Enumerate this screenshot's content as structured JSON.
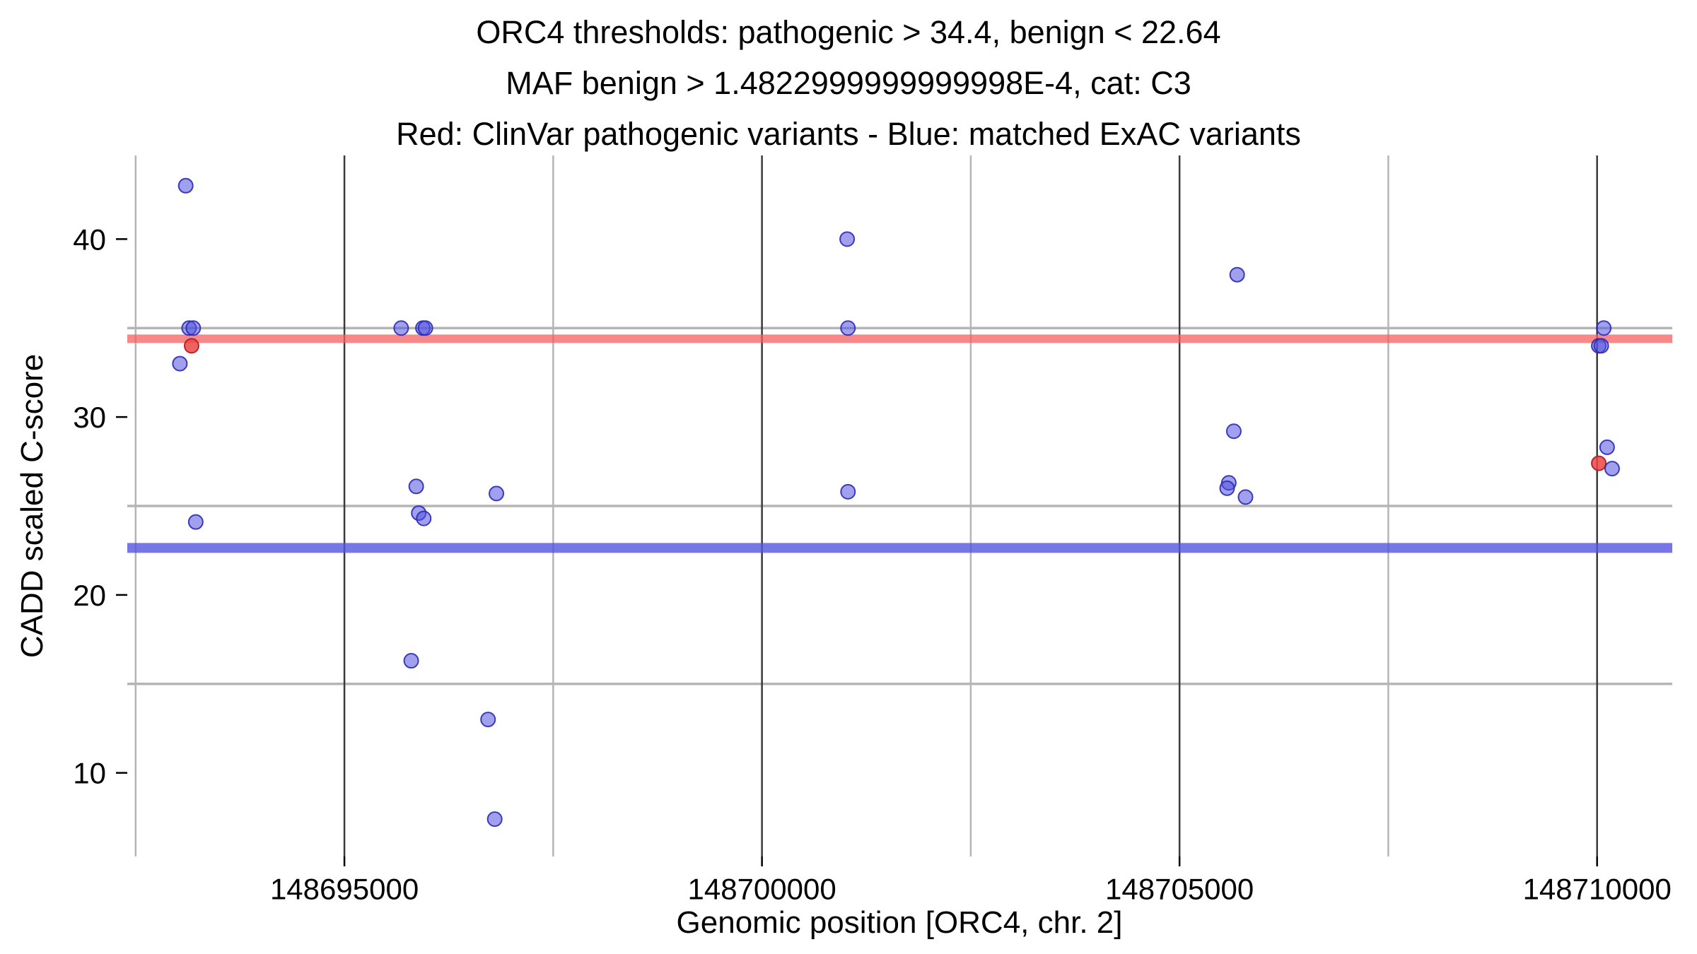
{
  "chart_data": {
    "type": "scatter",
    "title_lines": [
      "ORC4 thresholds: pathogenic > 34.4, benign < 22.64",
      "MAF benign > 1.4822999999999998E-4, cat: C3",
      "Red: ClinVar pathogenic variants - Blue: matched ExAC variants"
    ],
    "xlabel": "Genomic position [ORC4, chr. 2]",
    "ylabel": "CADD scaled C-score",
    "xlim": [
      148692400,
      148710900
    ],
    "ylim": [
      5.3,
      44.7
    ],
    "x_major_ticks": [
      {
        "value": 148695000,
        "label": "148695000"
      },
      {
        "value": 148700000,
        "label": "148700000"
      },
      {
        "value": 148705000,
        "label": "148705000"
      },
      {
        "value": 148710000,
        "label": "148710000"
      }
    ],
    "x_minor_gridlines": [
      148692500,
      148697500,
      148702500,
      148707500
    ],
    "y_major_ticks": [
      {
        "value": 10,
        "label": "10"
      },
      {
        "value": 20,
        "label": "20"
      },
      {
        "value": 30,
        "label": "30"
      },
      {
        "value": 40,
        "label": "40"
      }
    ],
    "y_minor_gridlines": [
      15,
      25,
      35
    ],
    "grid": {
      "major_v_color": "#3a3a3a",
      "major_v_width": 2.5,
      "minor_color": "#b5b5b5",
      "minor_v_width": 2.5,
      "minor_h_width": 3.5,
      "legend_position": "none"
    },
    "thresholds": [
      {
        "name": "pathogenic-threshold",
        "value": 34.4,
        "color": "rgba(246,96,96,0.75)",
        "width": 12
      },
      {
        "name": "benign-threshold",
        "value": 22.64,
        "color": "rgba(84,84,225,0.8)",
        "width": 14
      }
    ],
    "series": [
      {
        "name": "ClinVar pathogenic variants",
        "fill": "rgba(235,70,70,0.85)",
        "stroke": "rgba(178,32,32,0.95)",
        "points": [
          [
            148693170,
            34.0
          ],
          [
            148710020,
            27.4
          ]
        ]
      },
      {
        "name": "matched ExAC variants",
        "fill": "rgba(82,82,224,0.55)",
        "stroke": "rgba(42,42,180,0.9)",
        "points": [
          [
            148693100,
            43.0
          ],
          [
            148693140,
            35.0
          ],
          [
            148693190,
            35.0
          ],
          [
            148693030,
            33.0
          ],
          [
            148693220,
            24.1
          ],
          [
            148695680,
            35.0
          ],
          [
            148695940,
            35.0
          ],
          [
            148695970,
            35.0
          ],
          [
            148695860,
            26.1
          ],
          [
            148695890,
            24.6
          ],
          [
            148695950,
            24.3
          ],
          [
            148695800,
            16.3
          ],
          [
            148696820,
            25.7
          ],
          [
            148696720,
            13.0
          ],
          [
            148696800,
            7.4
          ],
          [
            148701020,
            40.0
          ],
          [
            148701030,
            35.0
          ],
          [
            148701030,
            25.8
          ],
          [
            148705690,
            38.0
          ],
          [
            148705650,
            29.2
          ],
          [
            148705590,
            26.3
          ],
          [
            148705570,
            26.0
          ],
          [
            148705790,
            25.5
          ],
          [
            148710080,
            35.0
          ],
          [
            148710020,
            34.0
          ],
          [
            148710050,
            34.0
          ],
          [
            148710120,
            28.3
          ],
          [
            148710180,
            27.1
          ]
        ]
      }
    ],
    "point_radius": 10,
    "point_stroke_width": 2,
    "tick_color": "#000000",
    "text_color": "#000000",
    "tick_font_size": 42
  }
}
